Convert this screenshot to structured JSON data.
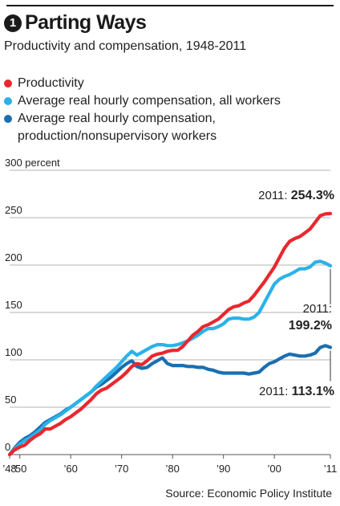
{
  "header": {
    "badge": "1",
    "title": "Parting Ways",
    "subtitle": "Productivity and compensation, 1948-2011"
  },
  "legend": [
    {
      "label": "Productivity",
      "color": "#e8282e"
    },
    {
      "label": "Average real hourly compensation, all workers",
      "color": "#2ab2e8"
    },
    {
      "label": "Average real hourly compensation, production/nonsupervisory workers",
      "color": "#1a6fb0"
    }
  ],
  "source": "Source: Economic Policy Institute",
  "chart_data": {
    "type": "line",
    "title": "Parting Ways",
    "subtitle": "Productivity and compensation, 1948-2011",
    "ylim": [
      0,
      300
    ],
    "xlim": [
      1948,
      2011
    ],
    "y_ticks": [
      {
        "value": 0,
        "label": "0"
      },
      {
        "value": 50,
        "label": "50"
      },
      {
        "value": 100,
        "label": "100"
      },
      {
        "value": 150,
        "label": "150"
      },
      {
        "value": 200,
        "label": "200"
      },
      {
        "value": 250,
        "label": "250"
      },
      {
        "value": 300,
        "label": "300 percent"
      }
    ],
    "x_ticks": [
      {
        "value": 1948,
        "label": "’48"
      },
      {
        "value": 1950,
        "label": "’50"
      },
      {
        "value": 1960,
        "label": "’60"
      },
      {
        "value": 1970,
        "label": "’70"
      },
      {
        "value": 1980,
        "label": "’80"
      },
      {
        "value": 1990,
        "label": "’90"
      },
      {
        "value": 2000,
        "label": "’00"
      },
      {
        "value": 2011,
        "label": "’11"
      }
    ],
    "grid": true,
    "x": [
      1948,
      1949,
      1950,
      1951,
      1952,
      1953,
      1954,
      1955,
      1956,
      1957,
      1958,
      1959,
      1960,
      1961,
      1962,
      1963,
      1964,
      1965,
      1966,
      1967,
      1968,
      1969,
      1970,
      1971,
      1972,
      1973,
      1974,
      1975,
      1976,
      1977,
      1978,
      1979,
      1980,
      1981,
      1982,
      1983,
      1984,
      1985,
      1986,
      1987,
      1988,
      1989,
      1990,
      1991,
      1992,
      1993,
      1994,
      1995,
      1996,
      1997,
      1998,
      1999,
      2000,
      2001,
      2002,
      2003,
      2004,
      2005,
      2006,
      2007,
      2008,
      2009,
      2010,
      2011
    ],
    "series": [
      {
        "name": "Productivity",
        "color": "#e8282e",
        "values": [
          0,
          5,
          8,
          10,
          15,
          19,
          22,
          27,
          27,
          30,
          33,
          37,
          40,
          44,
          48,
          53,
          58,
          64,
          68,
          70,
          74,
          78,
          82,
          87,
          93,
          96,
          95,
          99,
          104,
          106,
          107,
          109,
          110,
          110,
          114,
          120,
          126,
          130,
          135,
          137,
          140,
          143,
          148,
          153,
          156,
          157,
          160,
          162,
          168,
          175,
          182,
          190,
          198,
          208,
          218,
          225,
          228,
          230,
          234,
          238,
          245,
          252,
          254,
          254.3
        ]
      },
      {
        "name": "Average real hourly compensation, all workers",
        "color": "#2ab2e8",
        "values": [
          0,
          6,
          11,
          15,
          18,
          22,
          26,
          32,
          36,
          39,
          42,
          46,
          50,
          54,
          58,
          62,
          66,
          72,
          77,
          82,
          87,
          92,
          98,
          104,
          109,
          105,
          108,
          111,
          114,
          116,
          116,
          115,
          115,
          116,
          118,
          120,
          123,
          126,
          130,
          133,
          133,
          135,
          138,
          143,
          144,
          144,
          143,
          143,
          145,
          150,
          160,
          170,
          180,
          185,
          188,
          190,
          193,
          196,
          196,
          198,
          203,
          204,
          202,
          199.2
        ]
      },
      {
        "name": "Average real hourly compensation, production/nonsupervisory workers",
        "color": "#1a6fb0",
        "values": [
          0,
          7,
          13,
          17,
          20,
          24,
          29,
          34,
          37,
          40,
          43,
          47,
          50,
          54,
          58,
          62,
          66,
          71,
          74,
          78,
          82,
          87,
          92,
          96,
          99,
          93,
          91,
          92,
          96,
          99,
          102,
          96,
          94,
          94,
          94,
          93,
          93,
          92,
          92,
          90,
          89,
          87,
          86,
          86,
          86,
          86,
          86,
          85,
          86,
          87,
          92,
          96,
          98,
          101,
          104,
          106,
          105,
          104,
          104,
          105,
          107,
          113,
          115,
          113.1
        ]
      }
    ],
    "annotations": [
      {
        "series": 0,
        "prefix": "2011: ",
        "value": "254.3%"
      },
      {
        "series": 1,
        "prefix": "2011:",
        "value": "199.2%"
      },
      {
        "series": 2,
        "prefix": "2011: ",
        "value": "113.1%"
      }
    ]
  }
}
